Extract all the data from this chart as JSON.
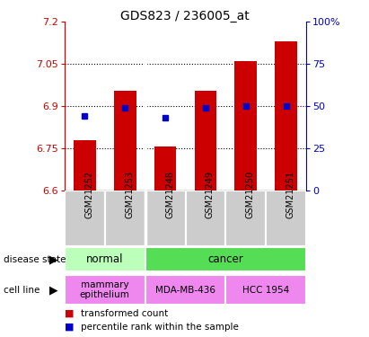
{
  "title": "GDS823 / 236005_at",
  "samples": [
    "GSM21252",
    "GSM21253",
    "GSM21248",
    "GSM21249",
    "GSM21250",
    "GSM21251"
  ],
  "bar_values": [
    6.78,
    6.955,
    6.755,
    6.955,
    7.06,
    7.13
  ],
  "percentile_values": [
    44,
    49,
    43,
    49,
    50,
    50
  ],
  "ymin": 6.6,
  "ymax": 7.2,
  "yticks": [
    6.6,
    6.75,
    6.9,
    7.05,
    7.2
  ],
  "ytick_labels": [
    "6.6",
    "6.75",
    "6.9",
    "7.05",
    "7.2"
  ],
  "right_yticks": [
    0,
    25,
    50,
    75,
    100
  ],
  "right_ytick_labels": [
    "0",
    "25",
    "50",
    "75",
    "100%"
  ],
  "bar_color": "#cc0000",
  "dot_color": "#0000cc",
  "disease_state_normal": "normal",
  "disease_state_cancer": "cancer",
  "cell_line_mammary": "mammary\nepithelium",
  "cell_line_mda": "MDA-MB-436",
  "cell_line_hcc": "HCC 1954",
  "normal_color": "#bbffbb",
  "cancer_color": "#55dd55",
  "mammary_color": "#ee88ee",
  "mda_color": "#ee88ee",
  "hcc_color": "#ee88ee",
  "sample_bg_color": "#cccccc",
  "left_axis_color": "#cc0000",
  "right_axis_color": "#0000cc",
  "divider_color": "#888888"
}
